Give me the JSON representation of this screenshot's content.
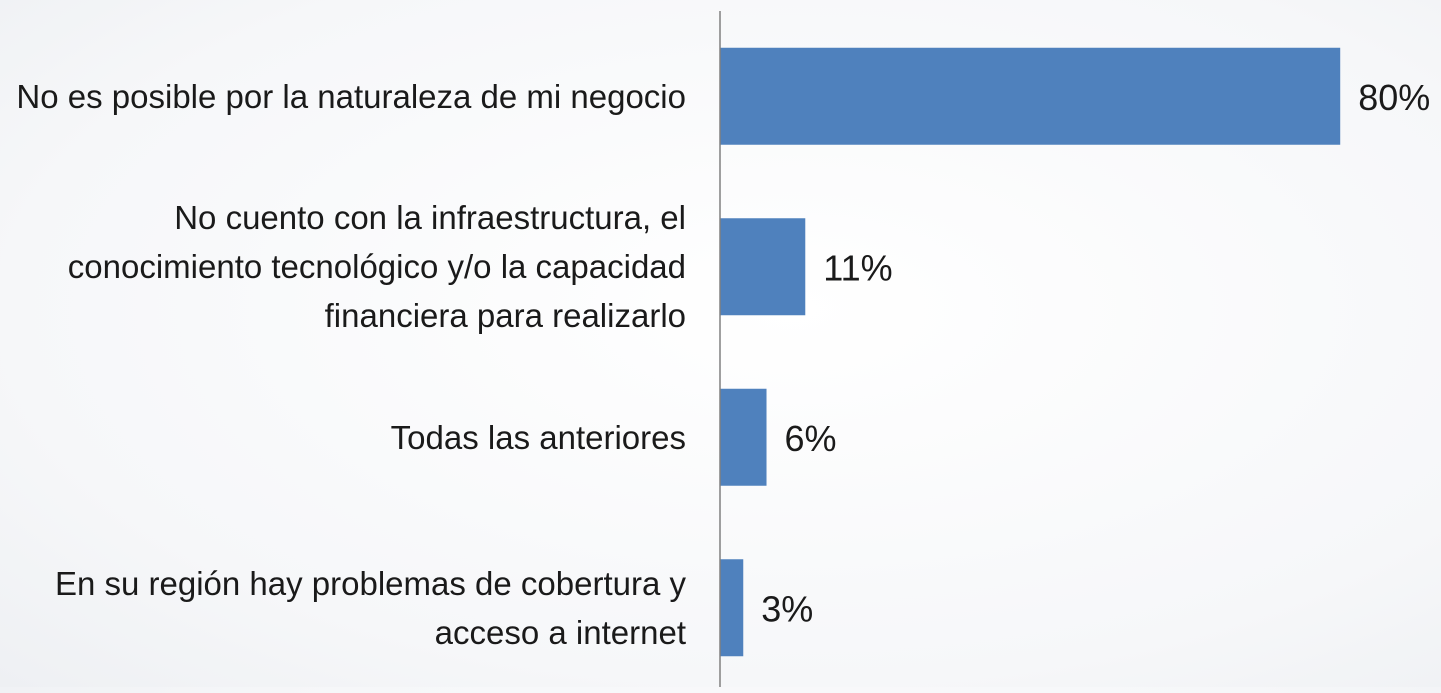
{
  "chart_data": {
    "type": "bar",
    "orientation": "horizontal",
    "categories": [
      "No es posible por la naturaleza de mi negocio",
      "No cuento con la infraestructura, el conocimiento tecnológico y/o la capacidad financiera para realizarlo",
      "Todas las anteriores",
      "En su región hay problemas de cobertura y acceso a internet"
    ],
    "values": [
      80,
      11,
      6,
      3
    ],
    "value_labels": [
      "80%",
      "11%",
      "6%",
      "3%"
    ],
    "color": "#4f81bd",
    "xlim": [
      0,
      93
    ]
  }
}
